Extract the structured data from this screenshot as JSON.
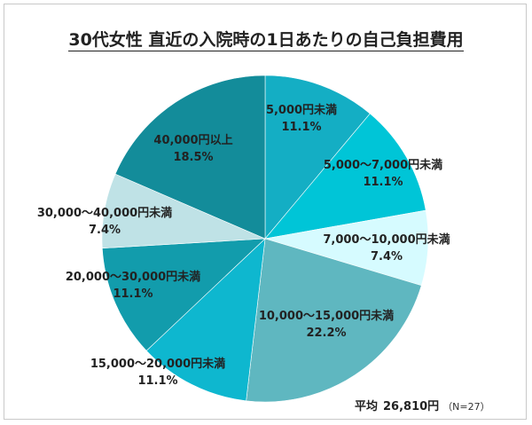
{
  "title": "30代女性 直近の入院時の1日あたりの自己負担費用",
  "footer": {
    "label": "平均",
    "value": "26,810円",
    "n": "（N=27）"
  },
  "chart_data": {
    "type": "pie",
    "slices": [
      {
        "label": "5,000円未満",
        "percent_label": "11.1%",
        "value": 11.1,
        "color": "#14aec4"
      },
      {
        "label": "5,000～7,000円未満",
        "percent_label": "11.1%",
        "value": 11.1,
        "color": "#00c5d7"
      },
      {
        "label": "7,000～10,000円未満",
        "percent_label": "7.4%",
        "value": 7.4,
        "color": "#d6fbff"
      },
      {
        "label": "10,000～15,000円未満",
        "percent_label": "22.2%",
        "value": 22.2,
        "color": "#5fb7c0"
      },
      {
        "label": "15,000～20,000円未満",
        "percent_label": "11.1%",
        "value": 11.1,
        "color": "#0eb7cf"
      },
      {
        "label": "20,000～30,000円未満",
        "percent_label": "11.1%",
        "value": 11.1,
        "color": "#129cac"
      },
      {
        "label": "30,000～40,000円未満",
        "percent_label": "7.4%",
        "value": 7.4,
        "color": "#bfe2e6"
      },
      {
        "label": "40,000円以上",
        "percent_label": "18.5%",
        "value": 18.5,
        "color": "#138c9a"
      }
    ]
  }
}
